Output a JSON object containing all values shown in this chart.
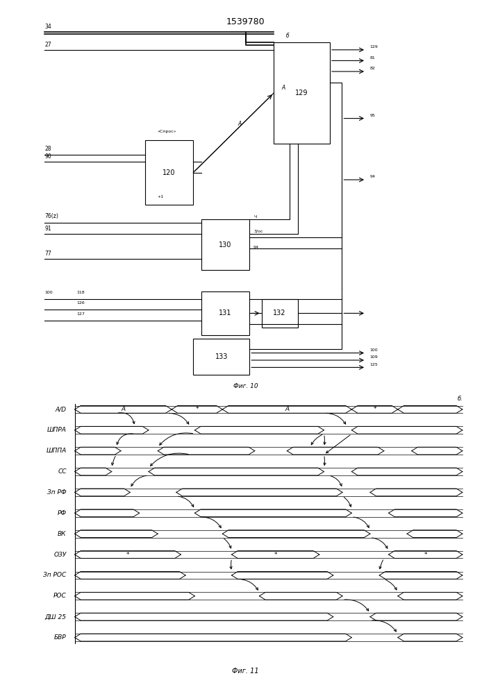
{
  "title": "1539780",
  "fig10_caption": "Фиг. 10",
  "fig11_caption": "Фиг. 11",
  "fig11_labels": [
    "А/D",
    "ШПРА",
    "ШППА",
    "СС",
    "Зп РФ",
    "РФ",
    "ВК",
    "ОЗУ",
    "Зп РОС",
    "РОС",
    "ДШ 25",
    "БВР"
  ],
  "bg_color": "#ffffff",
  "line_color": "#000000"
}
